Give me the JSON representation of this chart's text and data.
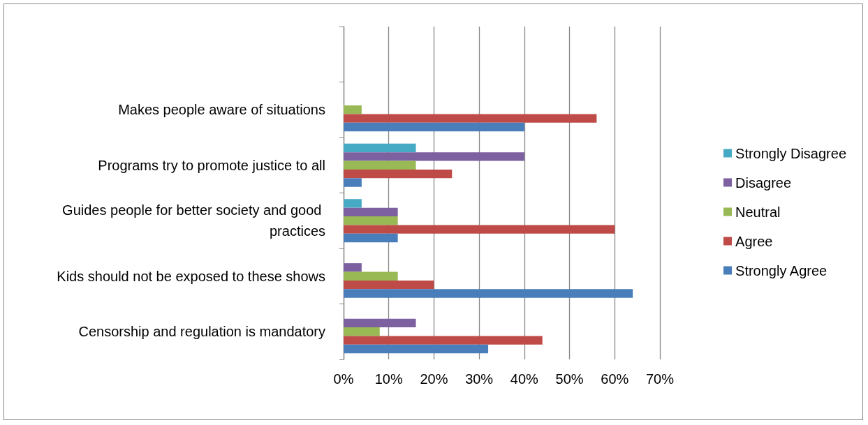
{
  "chart_data": {
    "type": "bar",
    "orientation": "horizontal",
    "categories": [
      null,
      "Makes people aware of situations",
      "Programs try to promote justice to all",
      "Guides people for better society and good practices",
      "Kids should not be exposed to these shows",
      "Censorship and regulation is mandatory"
    ],
    "series": [
      {
        "name": "Strongly Disagree",
        "color": "#46aac5",
        "values": [
          null,
          0,
          16,
          4,
          0,
          0
        ]
      },
      {
        "name": "Disagree",
        "color": "#7d60a0",
        "values": [
          null,
          0,
          40,
          12,
          4,
          16
        ]
      },
      {
        "name": "Neutral",
        "color": "#98b954",
        "values": [
          null,
          4,
          16,
          12,
          12,
          8
        ]
      },
      {
        "name": "Agree",
        "color": "#be4b48",
        "values": [
          null,
          56,
          24,
          60,
          20,
          44
        ]
      },
      {
        "name": "Strongly Agree",
        "color": "#4a7ebb",
        "values": [
          null,
          40,
          4,
          12,
          64,
          32
        ]
      }
    ],
    "xlim": [
      0,
      70
    ],
    "xticks": [
      {
        "value": 0,
        "label": "0%"
      },
      {
        "value": 10,
        "label": "10%"
      },
      {
        "value": 20,
        "label": "20%"
      },
      {
        "value": 30,
        "label": "30%"
      },
      {
        "value": 40,
        "label": "40%"
      },
      {
        "value": 50,
        "label": "50%"
      },
      {
        "value": 60,
        "label": "60%"
      },
      {
        "value": 70,
        "label": "70%"
      }
    ],
    "grid": "x",
    "legend": "right"
  }
}
